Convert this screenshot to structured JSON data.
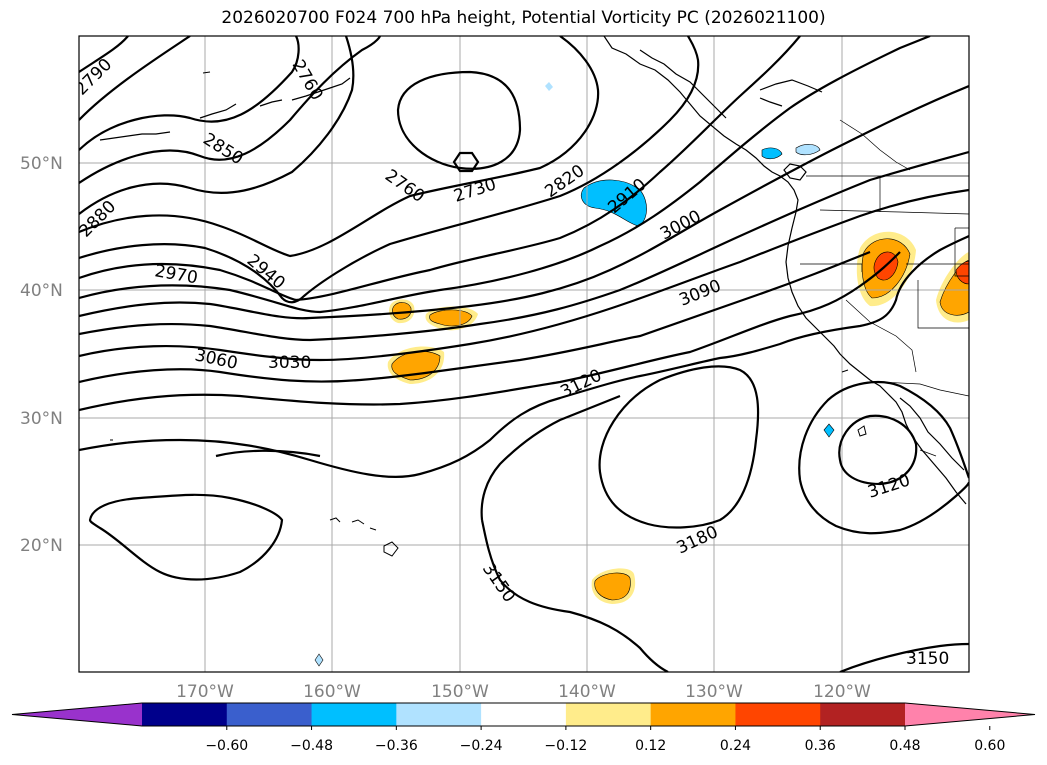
{
  "title": "2026020700 F024 700 hPa height, Potential Vorticity PC (2026021100)",
  "lat_labels": [
    "50°N",
    "40°N",
    "30°N",
    "20°N"
  ],
  "lon_labels": [
    "170°W",
    "160°W",
    "150°W",
    "140°W",
    "130°W",
    "120°W"
  ],
  "contour_labels": [
    "2790",
    "2760",
    "2850",
    "2880",
    "2970",
    "2940",
    "2760",
    "2730",
    "2820",
    "2910",
    "3000",
    "3090",
    "3060",
    "3030",
    "3120",
    "3120",
    "3180",
    "3150",
    "3150"
  ],
  "colorbar": {
    "ticks": [
      "−0.60",
      "−0.48",
      "−0.36",
      "−0.24",
      "−0.12",
      "0.12",
      "0.24",
      "0.36",
      "0.48",
      "0.60"
    ],
    "colors": [
      "#9932cc",
      "#00008b",
      "#3a5fcd",
      "#00bfff",
      "#b0e2ff",
      "#ffffff",
      "#ffec8b",
      "#ffa500",
      "#ff4500",
      "#b22222",
      "#ff82ab"
    ]
  }
}
